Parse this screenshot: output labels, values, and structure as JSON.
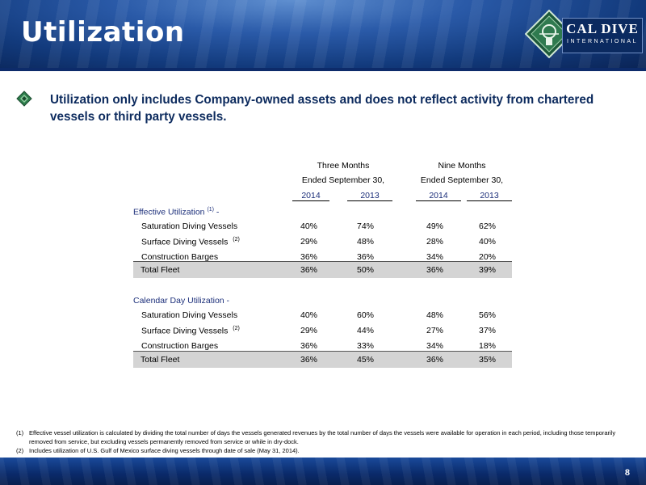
{
  "header": {
    "title": "Utilization",
    "logo_name": "CAL DIVE",
    "logo_sub": "INTERNATIONAL"
  },
  "bullet": "Utilization only includes Company-owned assets and does not reflect activity from chartered vessels or third party vessels.",
  "table": {
    "group1": [
      "Three Months",
      "Ended September 30,"
    ],
    "group2": [
      "Nine Months",
      "Ended September 30,"
    ],
    "years": [
      "2014",
      "2013",
      "2014",
      "2013"
    ],
    "sections": [
      {
        "title": "Effective Utilization",
        "sup": "(1)",
        "suffix": " -",
        "rows": [
          {
            "label": "Saturation Diving Vessels",
            "sup": "",
            "values": [
              "40%",
              "74%",
              "49%",
              "62%"
            ]
          },
          {
            "label": "Surface Diving Vessels",
            "sup": "(2)",
            "values": [
              "29%",
              "48%",
              "28%",
              "40%"
            ]
          },
          {
            "label": "Construction Barges",
            "sup": "",
            "values": [
              "36%",
              "36%",
              "34%",
              "20%"
            ]
          }
        ],
        "total": {
          "label": "Total Fleet",
          "values": [
            "36%",
            "50%",
            "36%",
            "39%"
          ]
        }
      },
      {
        "title": "Calendar Day Utilization -",
        "sup": "",
        "suffix": "",
        "rows": [
          {
            "label": "Saturation Diving Vessels",
            "sup": "",
            "values": [
              "40%",
              "60%",
              "48%",
              "56%"
            ]
          },
          {
            "label": "Surface Diving Vessels",
            "sup": "(2)",
            "values": [
              "29%",
              "44%",
              "27%",
              "37%"
            ]
          },
          {
            "label": "Construction Barges",
            "sup": "",
            "values": [
              "36%",
              "33%",
              "34%",
              "18%"
            ]
          }
        ],
        "total": {
          "label": "Total Fleet",
          "values": [
            "36%",
            "45%",
            "36%",
            "35%"
          ]
        }
      }
    ]
  },
  "footnotes": [
    {
      "num": "(1)",
      "text": "Effective vessel utilization is calculated by dividing the total number of days the vessels generated revenues by the total number of days the vessels were available for operation in each period, including those temporarily removed from service, but excluding vessels permanently removed from service or while in dry-dock."
    },
    {
      "num": "(2)",
      "text": "Includes utilization of U.S. Gulf of Mexico surface diving vessels through date of sale (May 31, 2014)."
    }
  ],
  "page_number": "8",
  "colors": {
    "navy": "#0d2b5e",
    "label_blue": "#1c2f7a",
    "total_row_bg": "#d4d4d4"
  }
}
